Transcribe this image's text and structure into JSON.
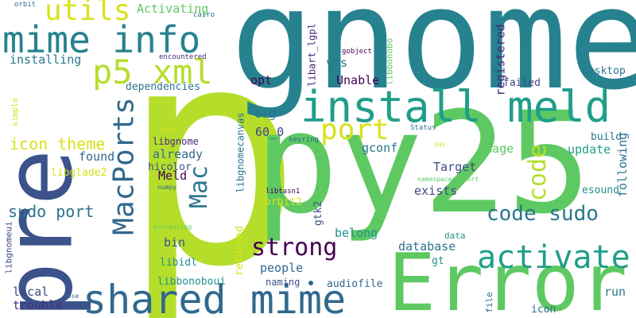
{
  "words": [
    {
      "text": "p",
      "color": "#b5de2b"
    },
    {
      "text": "gnome",
      "color": "#26828e"
    },
    {
      "text": "py25",
      "color": "#5ec962"
    },
    {
      "text": "pre",
      "color": "#3b528b"
    },
    {
      "text": "Error",
      "color": "#5ec962"
    },
    {
      "text": "install meld",
      "color": "#1f9e89"
    },
    {
      "text": "shared mime",
      "color": "#31688e"
    },
    {
      "text": "mime info",
      "color": "#26828e"
    },
    {
      "text": "p5 xml",
      "color": "#b5de2b"
    },
    {
      "text": "activate",
      "color": "#1f9e89"
    },
    {
      "text": "MacPorts",
      "color": "#31688e"
    },
    {
      "text": "utils",
      "color": "#d8e219"
    },
    {
      "text": "port",
      "color": "#d8e219"
    },
    {
      "text": "strong",
      "color": "#440154"
    },
    {
      "text": "code",
      "color": "#b5de2b"
    },
    {
      "text": "code sudo",
      "color": "#2a788e"
    },
    {
      "text": "Mac",
      "color": "#2a788e"
    },
    {
      "text": "icon theme",
      "color": "#d8e219"
    },
    {
      "text": "sudo port",
      "color": "#2c728e"
    },
    {
      "text": "Activating",
      "color": "#5ec962"
    },
    {
      "text": "installing",
      "color": "#2a788e"
    },
    {
      "text": "dependencies",
      "color": "#2c728e"
    },
    {
      "text": "opt",
      "color": "#440154"
    },
    {
      "text": "Unable",
      "color": "#440154"
    },
    {
      "text": "registered",
      "color": "#482878"
    },
    {
      "text": "60_0",
      "color": "#3e4989"
    },
    {
      "text": "already",
      "color": "#31688e"
    },
    {
      "text": "libgnome",
      "color": "#472d7b"
    },
    {
      "text": "hicolor",
      "color": "#3b528b"
    },
    {
      "text": "Meld",
      "color": "#440154"
    },
    {
      "text": "found",
      "color": "#31688e"
    },
    {
      "text": "Target",
      "color": "#3e4989"
    },
    {
      "text": "exists",
      "color": "#3e4989"
    },
    {
      "text": "Image",
      "color": "#5ec962"
    },
    {
      "text": "gconf",
      "color": "#2a788e"
    },
    {
      "text": "update",
      "color": "#1f9e89"
    },
    {
      "text": "build",
      "color": "#2c728e"
    },
    {
      "text": "following",
      "color": "#2c728e"
    },
    {
      "text": "org",
      "color": "#2c728e"
    },
    {
      "text": "libglade2",
      "color": "#d8e219"
    },
    {
      "text": "desktop",
      "color": "#2a788e"
    },
    {
      "text": "vfs",
      "color": "#2a788e"
    },
    {
      "text": "failed",
      "color": "#3e4989"
    },
    {
      "text": "gtk2",
      "color": "#3b528b"
    },
    {
      "text": "belong",
      "color": "#21918c"
    },
    {
      "text": "database",
      "color": "#2c728e"
    },
    {
      "text": "people",
      "color": "#31688e"
    },
    {
      "text": "bin",
      "color": "#3b528b"
    },
    {
      "text": "libidl",
      "color": "#21918c"
    },
    {
      "text": "local",
      "color": "#3e4989"
    },
    {
      "text": "trouble",
      "color": "#46327e"
    },
    {
      "text": "esound",
      "color": "#21918c"
    },
    {
      "text": "run",
      "color": "#2a788e"
    },
    {
      "text": "icon",
      "color": "#2c728e"
    },
    {
      "text": "libbonoboui",
      "color": "#21918c"
    },
    {
      "text": "naming",
      "color": "#3b528b"
    },
    {
      "text": "audiofile",
      "color": "#31688e"
    },
    {
      "text": "returned",
      "color": "#d8e219"
    },
    {
      "text": "libgnomecanvas",
      "color": "#2c728e"
    },
    {
      "text": "libart_lgpl",
      "color": "#482878"
    },
    {
      "text": "libbonobo",
      "color": "#5ec962"
    },
    {
      "text": "orbit2",
      "color": "#d8e219"
    },
    {
      "text": "gt",
      "color": "#21918c"
    },
    {
      "text": "data",
      "color": "#21918c"
    },
    {
      "text": "libgnomeui",
      "color": "#3e4989"
    },
    {
      "text": "file",
      "color": "#31688e"
    },
    {
      "text": "simple",
      "color": "#d8e219"
    },
    {
      "text": "orbit",
      "color": "#2c728e"
    },
    {
      "text": "cairo",
      "color": "#2c728e"
    },
    {
      "text": "encountered",
      "color": "#482878"
    },
    {
      "text": "gobject",
      "color": "#440154"
    },
    {
      "text": "keyring",
      "color": "#31688e"
    },
    {
      "text": "Status",
      "color": "#2c728e"
    },
    {
      "text": "namespacesupport",
      "color": "#5ec962"
    },
    {
      "text": "libtasn1",
      "color": "#440154"
    },
    {
      "text": "gtk",
      "color": "#d8e219"
    },
    {
      "text": "numpy",
      "color": "#31688e"
    },
    {
      "text": "processing",
      "color": "#5ec962"
    },
    {
      "text": "nose",
      "color": "#31688e"
    },
    {
      "text": "sax",
      "color": "#d8e219"
    }
  ]
}
